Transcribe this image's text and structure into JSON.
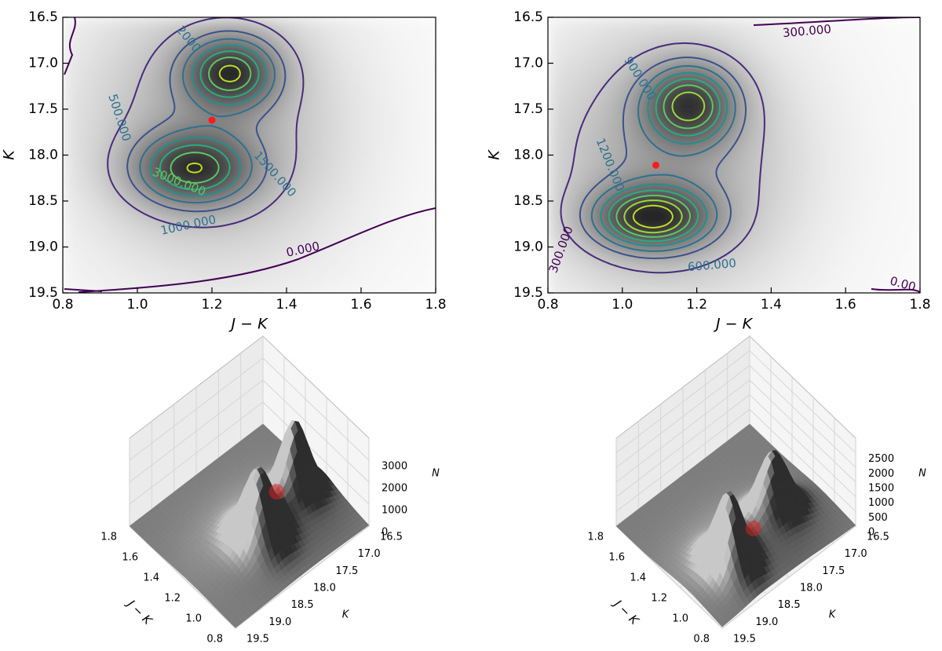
{
  "chart_data": [
    {
      "type": "contour",
      "xlabel": "J − K",
      "ylabel": "K",
      "xlim": [
        0.8,
        1.8
      ],
      "xticks": [
        0.8,
        {
          "value": 1,
          "label": "1.0"
        },
        1.2,
        1.4,
        1.6,
        1.8
      ],
      "ylim": [
        19.5,
        16.5
      ],
      "yticks": [
        16.5,
        {
          "value": 17,
          "label": "17.0"
        },
        17.5,
        {
          "value": 18,
          "label": "18.0"
        },
        18.5,
        {
          "value": 19,
          "label": "19.0"
        },
        19.5
      ],
      "levels": [
        500,
        1000,
        1500,
        2000,
        2500,
        3000,
        3500
      ],
      "colors": [
        "#472c7a",
        "#3b518b",
        "#2c718e",
        "#21908d",
        "#27ad81",
        "#5cc863",
        "#bddf26"
      ],
      "contour_labels": [
        "2000",
        "500.000",
        "3000.000",
        "1500.000",
        "1000.000",
        "0.000"
      ],
      "point": {
        "x": 1.2,
        "y": 17.62,
        "color": "#ff1a1a"
      }
    },
    {
      "type": "contour",
      "xlabel": "J − K",
      "ylabel": "K",
      "xlim": [
        0.8,
        1.8
      ],
      "xticks": [
        0.8,
        {
          "value": 1,
          "label": "1.0"
        },
        1.2,
        1.4,
        1.6,
        1.8
      ],
      "ylim": [
        19.5,
        16.5
      ],
      "yticks": [
        16.5,
        {
          "value": 17,
          "label": "17.0"
        },
        17.5,
        {
          "value": 18,
          "label": "18.0"
        },
        18.5,
        {
          "value": 19,
          "label": "19.0"
        },
        19.5
      ],
      "levels": [
        300,
        600,
        900,
        1200,
        1500,
        1800,
        2100,
        2400
      ],
      "colors": [
        "#472c7a",
        "#3b518b",
        "#2c718e",
        "#21908d",
        "#27ad81",
        "#5cc863",
        "#9bd93c",
        "#bddf26"
      ],
      "contour_labels": [
        "300.000",
        "900.000",
        "1200.000",
        "300.000",
        "600.000",
        "0.00"
      ],
      "point": {
        "x": 1.09,
        "y": 18.11,
        "color": "#ff1a1a"
      }
    },
    {
      "type": "surface3d",
      "xlabel": "J − K",
      "ylabel": "K",
      "zlabel": "N",
      "xlim": [
        0.8,
        1.8
      ],
      "xticks": [
        0.8,
        {
          "value": 1,
          "label": "1.0"
        },
        1.2,
        1.4,
        1.6,
        1.8
      ],
      "ylim": [
        16.5,
        19.5
      ],
      "yticks": [
        16.5,
        {
          "value": 17,
          "label": "17.0"
        },
        17.5,
        {
          "value": 18,
          "label": "18.0"
        },
        18.5,
        {
          "value": 19,
          "label": "19.0"
        },
        19.5
      ],
      "zlim": [
        0,
        4000
      ],
      "zticks": [
        0,
        1000,
        2000,
        3000
      ],
      "point": {
        "x": 1.2,
        "y": 17.62,
        "color": "#e02020"
      }
    },
    {
      "type": "surface3d",
      "xlabel": "J − K",
      "ylabel": "K",
      "zlabel": "N",
      "xlim": [
        0.8,
        1.8
      ],
      "xticks": [
        0.8,
        {
          "value": 1,
          "label": "1.0"
        },
        1.2,
        1.4,
        1.6,
        1.8
      ],
      "ylim": [
        16.5,
        19.5
      ],
      "yticks": [
        16.5,
        {
          "value": 17,
          "label": "17.0"
        },
        17.5,
        {
          "value": 18,
          "label": "18.0"
        },
        18.5,
        {
          "value": 19,
          "label": "19.0"
        },
        19.5
      ],
      "zlim": [
        0,
        3000
      ],
      "zticks": [
        0,
        500,
        1000,
        1500,
        2000,
        2500
      ],
      "point": {
        "x": 1.09,
        "y": 18.11,
        "color": "#e02020"
      }
    }
  ]
}
